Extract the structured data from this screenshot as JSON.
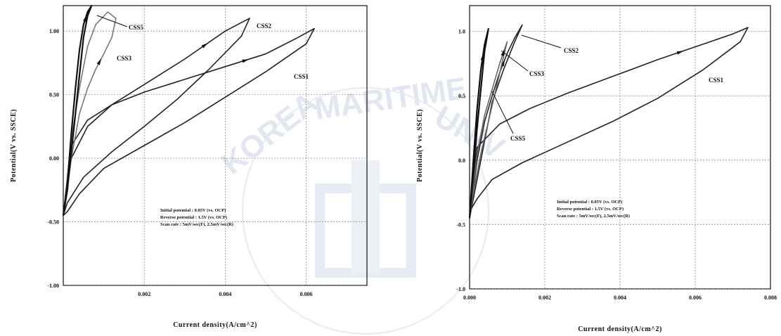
{
  "chart_data": [
    {
      "type": "line",
      "title": "",
      "xlabel": "Current density(A/cm^2)",
      "ylabel": "Potential(V vs. SSCE)",
      "xlim": [
        0,
        0.0075
      ],
      "ylim": [
        -1.0,
        1.2
      ],
      "xticks": [
        0.002,
        0.004,
        0.006
      ],
      "xtick_labels": [
        "0.002",
        "0.004",
        "0.006"
      ],
      "yticks": [
        -1.0,
        -0.5,
        0.0,
        0.5,
        1.0
      ],
      "ytick_labels": [
        "-1.00",
        "-0.50",
        "0.00",
        "0.50",
        "1.00"
      ],
      "grid": true,
      "annotation_lines": [
        "Initial potential : 0.05V (vs. OCP)",
        "Reverse potential : 1.5V (vs. OCP)",
        "Scan rate : 5mV/sec(F), 2.5mV/sec(R)"
      ],
      "series": [
        {
          "name": "CSS1",
          "color": "#222222",
          "x": [
            0.0,
            0.0002,
            0.0006,
            0.0012,
            0.002,
            0.003,
            0.004,
            0.005,
            0.0058,
            0.0062,
            0.006,
            0.005,
            0.004,
            0.003,
            0.002,
            0.001,
            0.0004,
            0.0001,
            0.0
          ],
          "y": [
            -0.45,
            0.1,
            0.3,
            0.42,
            0.52,
            0.62,
            0.72,
            0.82,
            0.95,
            1.02,
            0.9,
            0.68,
            0.48,
            0.28,
            0.1,
            -0.08,
            -0.28,
            -0.42,
            -0.45
          ]
        },
        {
          "name": "CSS2",
          "color": "#222222",
          "x": [
            0.0,
            0.0002,
            0.0006,
            0.0012,
            0.002,
            0.003,
            0.004,
            0.0046,
            0.0044,
            0.0036,
            0.0028,
            0.002,
            0.0012,
            0.0005,
            0.0001,
            0.0
          ],
          "y": [
            -0.45,
            0.0,
            0.25,
            0.42,
            0.58,
            0.78,
            1.0,
            1.1,
            0.96,
            0.7,
            0.46,
            0.25,
            0.05,
            -0.15,
            -0.35,
            -0.45
          ]
        },
        {
          "name": "CSS3",
          "color": "#777777",
          "x": [
            0.0,
            0.0002,
            0.0004,
            0.0006,
            0.0008,
            0.001,
            0.0012,
            0.0013,
            0.0011,
            0.0008,
            0.0006,
            0.0004,
            0.0002,
            0.0
          ],
          "y": [
            -0.45,
            0.0,
            0.35,
            0.55,
            0.7,
            0.82,
            0.95,
            1.1,
            1.15,
            1.05,
            0.88,
            0.55,
            0.15,
            -0.45
          ]
        },
        {
          "name": "CSS5",
          "color": "#111111",
          "x": [
            0.0,
            0.0001,
            0.0002,
            0.0003,
            0.0004,
            0.0005,
            0.0006,
            0.0007,
            0.0006,
            0.0005,
            0.0004,
            0.0003,
            0.0002,
            0.0001,
            0.0
          ],
          "y": [
            -0.45,
            -0.2,
            0.2,
            0.55,
            0.85,
            1.05,
            1.15,
            1.2,
            1.12,
            0.95,
            0.65,
            0.35,
            0.05,
            -0.25,
            -0.45
          ]
        }
      ]
    },
    {
      "type": "line",
      "title": "",
      "xlabel": "Current density(A/cm^2)",
      "ylabel": "Potential(V vs. SSCE)",
      "xlim": [
        0,
        0.008
      ],
      "ylim": [
        -1.0,
        1.2
      ],
      "xticks": [
        0.0,
        0.002,
        0.004,
        0.006,
        0.008
      ],
      "xtick_labels": [
        "0.000",
        "0.002",
        "0.004",
        "0.006",
        "0.008"
      ],
      "yticks": [
        -1.0,
        -0.5,
        0.0,
        0.5,
        1.0
      ],
      "ytick_labels": [
        "-1.0",
        "-0.5",
        "0.0",
        "0.5",
        "1.0"
      ],
      "grid": true,
      "annotation_lines": [
        "Initial potential : 0.05V (vs. OCP)",
        "Reverse potential : 1.5V (vs. OCP)",
        "Scan rate : 5mV/sec(F), 2.5mV/sec(R)"
      ],
      "series": [
        {
          "name": "CSS1",
          "color": "#222222",
          "x": [
            0.0,
            0.0002,
            0.0008,
            0.0016,
            0.0026,
            0.0038,
            0.005,
            0.0062,
            0.007,
            0.0074,
            0.0072,
            0.0062,
            0.005,
            0.0038,
            0.0026,
            0.0014,
            0.0006,
            0.0002,
            0.0
          ],
          "y": [
            -0.4,
            0.1,
            0.28,
            0.4,
            0.52,
            0.65,
            0.78,
            0.9,
            0.98,
            1.03,
            0.92,
            0.7,
            0.48,
            0.3,
            0.14,
            -0.02,
            -0.15,
            -0.3,
            -0.4
          ]
        },
        {
          "name": "CSS2",
          "color": "#222222",
          "x": [
            0.0,
            0.0002,
            0.0004,
            0.0006,
            0.0008,
            0.001,
            0.0012,
            0.0014,
            0.0012,
            0.0009,
            0.0006,
            0.0004,
            0.0002,
            0.0
          ],
          "y": [
            -0.45,
            0.0,
            0.3,
            0.5,
            0.68,
            0.83,
            0.95,
            1.05,
            0.92,
            0.7,
            0.45,
            0.15,
            -0.15,
            -0.45
          ]
        },
        {
          "name": "CSS3",
          "color": "#666666",
          "x": [
            0.0,
            0.0002,
            0.0004,
            0.0006,
            0.0008,
            0.001,
            0.0009,
            0.0007,
            0.0005,
            0.0003,
            0.0001,
            0.0
          ],
          "y": [
            -0.45,
            0.05,
            0.35,
            0.55,
            0.75,
            0.92,
            0.8,
            0.55,
            0.3,
            0.05,
            -0.25,
            -0.45
          ]
        },
        {
          "name": "CSS5",
          "color": "#111111",
          "x": [
            0.0,
            0.0001,
            0.0002,
            0.0003,
            0.0004,
            0.0005,
            0.0004,
            0.0003,
            0.0002,
            0.0001,
            0.0
          ],
          "y": [
            -0.45,
            0.0,
            0.4,
            0.7,
            0.9,
            1.02,
            0.85,
            0.55,
            0.25,
            -0.1,
            -0.45
          ]
        }
      ]
    }
  ]
}
